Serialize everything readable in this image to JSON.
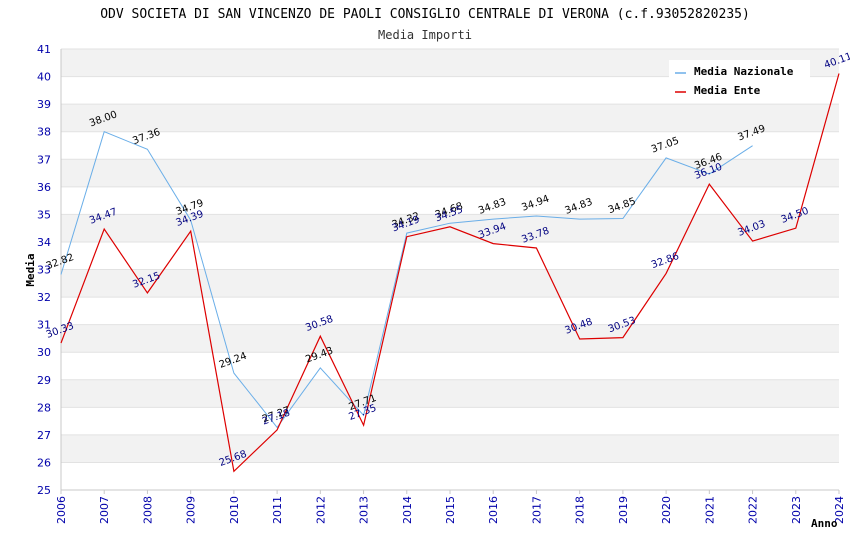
{
  "chart_data": {
    "type": "line",
    "title": "ODV SOCIETA DI SAN VINCENZO DE PAOLI CONSIGLIO CENTRALE DI VERONA (c.f.93052820235)",
    "subtitle": "Media Importi",
    "xlabel": "Anno",
    "ylabel": "Media",
    "ylim": [
      25,
      41
    ],
    "yticks": [
      "25",
      "26",
      "27",
      "28",
      "29",
      "30",
      "31",
      "32",
      "33",
      "34",
      "35",
      "36",
      "37",
      "38",
      "39",
      "40",
      "41"
    ],
    "categories": [
      "2006",
      "2007",
      "2008",
      "2009",
      "2010",
      "2011",
      "2012",
      "2013",
      "2014",
      "2015",
      "2016",
      "2017",
      "2018",
      "2019",
      "2020",
      "2021",
      "2022",
      "2023",
      "2024"
    ],
    "grid": "horizontal bands",
    "legend_position": "top-right",
    "series": [
      {
        "name": "Media Nazionale",
        "color": "#6aaee8",
        "label_color": "#000000",
        "values": [
          32.82,
          38.0,
          37.36,
          34.79,
          29.24,
          27.27,
          29.43,
          27.71,
          34.32,
          34.68,
          34.83,
          34.94,
          34.83,
          34.85,
          37.05,
          36.46,
          37.49,
          null,
          null
        ],
        "labels": [
          "32.82",
          "38.00",
          "37.36",
          "34.79",
          "29.24",
          "27.27",
          "29.43",
          "27.71",
          "34.32",
          "34.68",
          "34.83",
          "34.94",
          "34.83",
          "34.85",
          "37.05",
          "36.46",
          "37.49",
          "",
          ""
        ]
      },
      {
        "name": "Media Ente",
        "color": "#dd0000",
        "label_color": "#000080",
        "values": [
          30.33,
          34.47,
          32.15,
          34.39,
          25.68,
          27.18,
          30.58,
          27.35,
          34.19,
          34.55,
          33.94,
          33.78,
          30.48,
          30.53,
          32.86,
          36.1,
          34.03,
          34.5,
          40.11
        ],
        "labels": [
          "30.33",
          "34.47",
          "32.15",
          "34.39",
          "25.68",
          "27.18",
          "30.58",
          "27.35",
          "34.19",
          "34.55",
          "33.94",
          "33.78",
          "30.48",
          "30.53",
          "32.86",
          "36.10",
          "34.03",
          "34.50",
          "40.11"
        ]
      }
    ]
  }
}
